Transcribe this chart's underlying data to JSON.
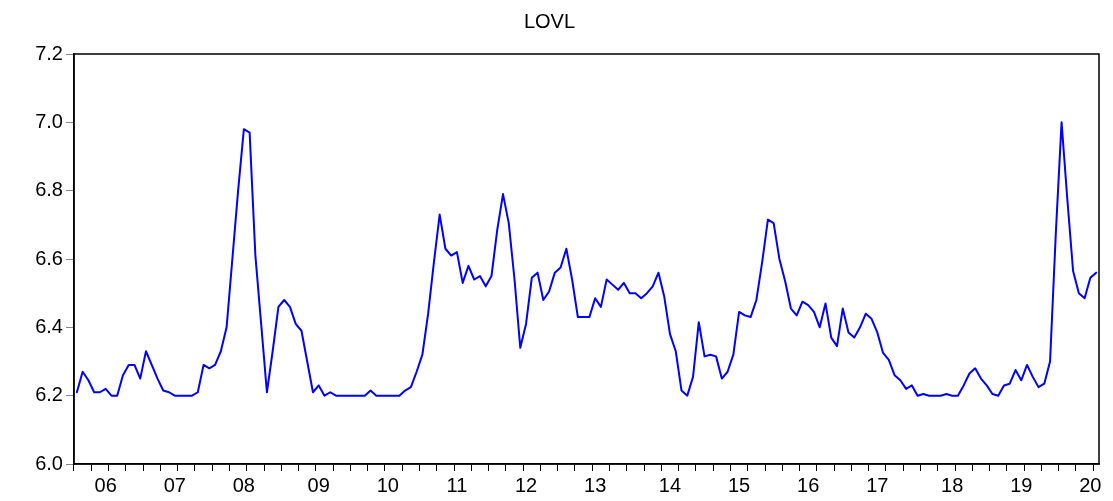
{
  "chart_data": {
    "type": "line",
    "title": "LOVL",
    "grid": false,
    "legend": false,
    "marker": "none",
    "line_style": "solid",
    "categories": [
      null,
      null,
      null,
      null,
      null,
      "06",
      null,
      null,
      null,
      null,
      null,
      null,
      null,
      null,
      null,
      null,
      null,
      "07",
      null,
      null,
      null,
      null,
      null,
      null,
      null,
      null,
      null,
      null,
      null,
      "08",
      null,
      null,
      null,
      null,
      null,
      null,
      null,
      null,
      null,
      null,
      null,
      null,
      "09",
      null,
      null,
      null,
      null,
      null,
      null,
      null,
      null,
      null,
      null,
      null,
      "10",
      null,
      null,
      null,
      null,
      null,
      null,
      null,
      null,
      null,
      null,
      null,
      "11",
      null,
      null,
      null,
      null,
      null,
      null,
      null,
      null,
      null,
      null,
      null,
      "12",
      null,
      null,
      null,
      null,
      null,
      null,
      null,
      null,
      null,
      null,
      null,
      "13",
      null,
      null,
      null,
      null,
      null,
      null,
      null,
      null,
      null,
      null,
      null,
      null,
      "14",
      null,
      null,
      null,
      null,
      null,
      null,
      null,
      null,
      null,
      null,
      null,
      "15",
      null,
      null,
      null,
      null,
      null,
      null,
      null,
      null,
      null,
      null,
      null,
      "16",
      null,
      null,
      null,
      null,
      null,
      null,
      null,
      null,
      null,
      null,
      null,
      "17",
      null,
      null,
      null,
      null,
      null,
      null,
      null,
      null,
      null,
      null,
      null,
      null,
      "18",
      null,
      null,
      null,
      null,
      null,
      null,
      null,
      null,
      null,
      null,
      null,
      "19",
      null,
      null,
      null,
      null,
      null,
      null,
      null,
      null,
      null,
      null,
      null,
      "20",
      null
    ],
    "ylim": [
      6.0,
      7.2
    ],
    "yticks": [
      {
        "value": 6,
        "label": "6.0"
      },
      6.2,
      6.4,
      6.6,
      6.8,
      {
        "value": 7,
        "label": "7.0"
      },
      7.2
    ],
    "series": [
      {
        "color": "#0000ff",
        "values": [
          6.21,
          6.27,
          6.245,
          6.21,
          6.21,
          6.22,
          6.2,
          6.2,
          6.26,
          6.29,
          6.29,
          6.25,
          6.33,
          6.29,
          6.25,
          6.215,
          6.21,
          6.2,
          6.2,
          6.2,
          6.2,
          6.21,
          6.29,
          6.28,
          6.29,
          6.33,
          6.4,
          6.6,
          6.8,
          6.98,
          6.97,
          6.61,
          6.41,
          6.21,
          6.33,
          6.46,
          6.48,
          6.46,
          6.41,
          6.39,
          6.3,
          6.21,
          6.23,
          6.2,
          6.21,
          6.2,
          6.2,
          6.2,
          6.2,
          6.2,
          6.2,
          6.215,
          6.2,
          6.2,
          6.2,
          6.2,
          6.2,
          6.215,
          6.225,
          6.27,
          6.32,
          6.44,
          6.59,
          6.73,
          6.63,
          6.61,
          6.62,
          6.53,
          6.58,
          6.54,
          6.55,
          6.52,
          6.55,
          6.685,
          6.79,
          6.705,
          6.54,
          6.34,
          6.41,
          6.545,
          6.56,
          6.48,
          6.505,
          6.56,
          6.575,
          6.63,
          6.54,
          6.43,
          6.43,
          6.43,
          6.485,
          6.46,
          6.54,
          6.525,
          6.51,
          6.53,
          6.5,
          6.5,
          6.485,
          6.5,
          6.52,
          6.56,
          6.49,
          6.38,
          6.33,
          6.215,
          6.2,
          6.255,
          6.415,
          6.315,
          6.32,
          6.315,
          6.25,
          6.27,
          6.32,
          6.445,
          6.435,
          6.43,
          6.48,
          6.59,
          6.715,
          6.705,
          6.6,
          6.535,
          6.455,
          6.435,
          6.475,
          6.465,
          6.445,
          6.4,
          6.47,
          6.37,
          6.345,
          6.455,
          6.385,
          6.37,
          6.4,
          6.44,
          6.425,
          6.385,
          6.325,
          6.305,
          6.26,
          6.245,
          6.22,
          6.23,
          6.2,
          6.205,
          6.2,
          6.2,
          6.2,
          6.205,
          6.2,
          6.2,
          6.23,
          6.265,
          6.28,
          6.25,
          6.23,
          6.205,
          6.2,
          6.23,
          6.235,
          6.275,
          6.245,
          6.29,
          6.255,
          6.225,
          6.235,
          6.3,
          6.675,
          7.0,
          6.775,
          6.565,
          6.5,
          6.485,
          6.545,
          6.56
        ]
      }
    ]
  }
}
